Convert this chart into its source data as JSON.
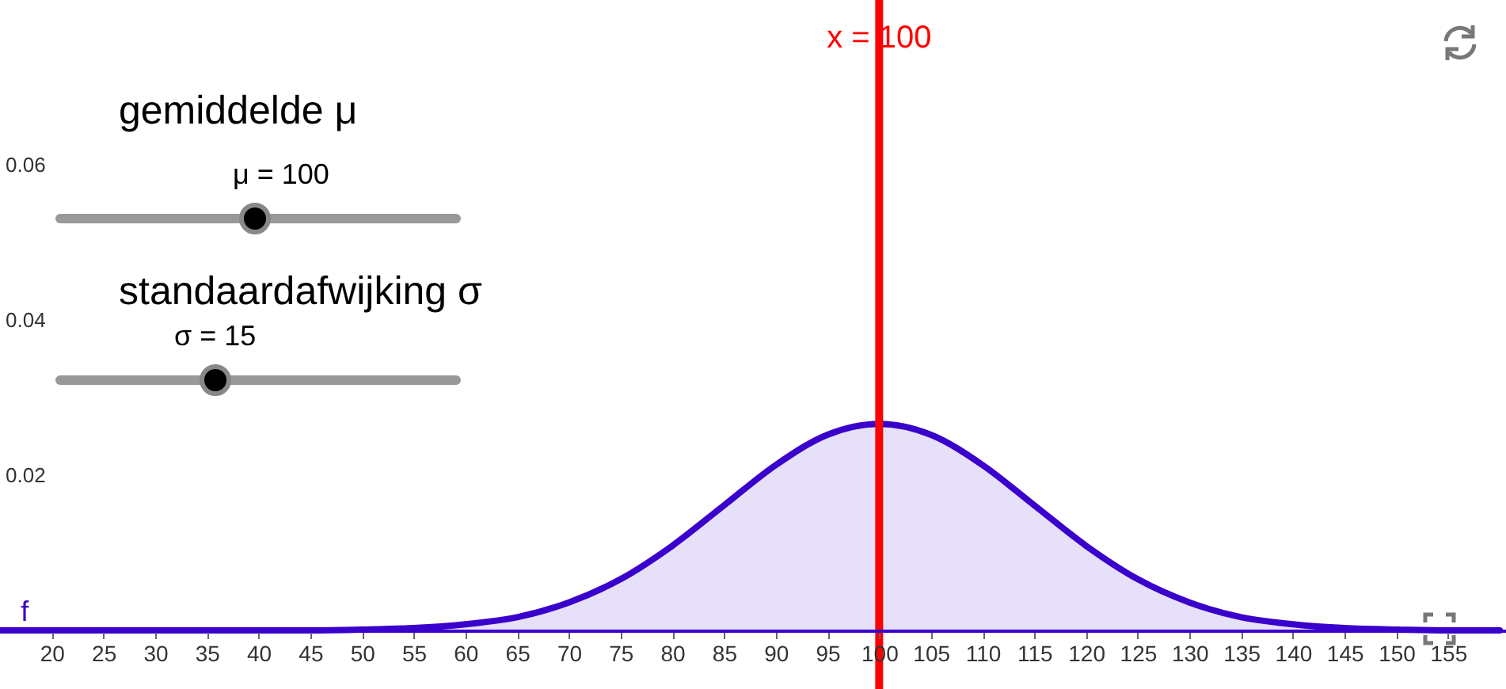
{
  "chart_data": {
    "type": "area",
    "x": [
      15,
      20,
      25,
      30,
      35,
      40,
      45,
      50,
      55,
      60,
      65,
      70,
      75,
      80,
      85,
      90,
      95,
      100,
      105,
      110,
      115,
      120,
      125,
      130,
      135,
      140,
      145,
      150,
      155,
      160
    ],
    "series": [
      {
        "color": "#3a00cc",
        "values": [
          0,
          0,
          0,
          0,
          0,
          0,
          0,
          0.0001,
          0.0003,
          0.0008,
          0.0017,
          0.0036,
          0.0066,
          0.0109,
          0.0161,
          0.0213,
          0.0252,
          0.0266,
          0.0252,
          0.0213,
          0.0161,
          0.0109,
          0.0066,
          0.0036,
          0.0017,
          0.0008,
          0.0003,
          0.0001,
          0,
          0
        ]
      }
    ],
    "xlim": [
      15,
      160.6
    ],
    "ylim": [
      0,
      0.0812
    ],
    "xticks": [
      20,
      25,
      30,
      35,
      40,
      45,
      50,
      55,
      60,
      65,
      70,
      75,
      80,
      85,
      90,
      95,
      100,
      105,
      110,
      115,
      120,
      125,
      130,
      135,
      140,
      145,
      150,
      155
    ],
    "yticks": [
      0.02,
      0.04,
      0.06
    ],
    "ref_lines": [
      {
        "axis": "x",
        "value": 100,
        "label": "x = 100",
        "color": "#ff0000"
      }
    ],
    "annotations": [
      "gemiddelde μ",
      "μ = 100",
      "standaardafwijking σ",
      "σ = 15",
      {
        "text": "f",
        "x": 17,
        "y": 0
      }
    ],
    "grid": false
  }
}
